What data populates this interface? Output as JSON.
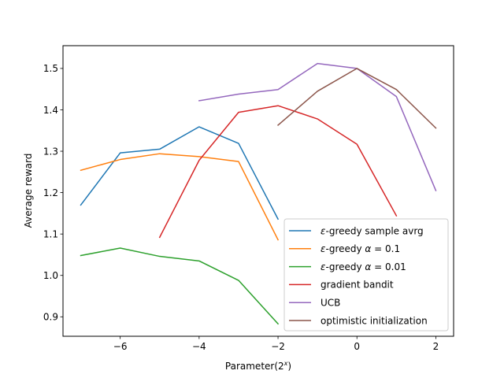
{
  "chart_data": {
    "type": "line",
    "xlabel": "Parameter(2",
    "xlabel_sup": "x",
    "xlabel_end": ")",
    "ylabel": "Average reward",
    "xlim": [
      -7.45,
      2.45
    ],
    "ylim": [
      0.853,
      1.555
    ],
    "xticks": [
      -6,
      -4,
      -2,
      0,
      2
    ],
    "xtick_labels": [
      "−6",
      "−4",
      "−2",
      "0",
      "2"
    ],
    "yticks": [
      0.9,
      1.0,
      1.1,
      1.2,
      1.3,
      1.4,
      1.5
    ],
    "ytick_labels": [
      "0.9",
      "1.0",
      "1.1",
      "1.2",
      "1.3",
      "1.4",
      "1.5"
    ],
    "grid": false,
    "legend_position": "lower-right",
    "series": [
      {
        "name": "ε-greedy sample avrg",
        "legend_main": "-greedy sample avrg",
        "legend_sub": "",
        "color": "#1f77b4",
        "x": [
          -7,
          -6,
          -5,
          -4,
          -3,
          -2
        ],
        "y": [
          1.17,
          1.296,
          1.305,
          1.359,
          1.319,
          1.136
        ]
      },
      {
        "name": "ε-greedy α = 0.1",
        "legend_main": "-greedy ",
        "legend_sub": "α = 0.1",
        "color": "#ff7f0e",
        "x": [
          -7,
          -6,
          -5,
          -4,
          -3,
          -2
        ],
        "y": [
          1.254,
          1.28,
          1.294,
          1.287,
          1.275,
          1.086
        ]
      },
      {
        "name": "ε-greedy α = 0.01",
        "legend_main": "-greedy ",
        "legend_sub": "α = 0.01",
        "color": "#2ca02c",
        "x": [
          -7,
          -6,
          -5,
          -4,
          -3,
          -2
        ],
        "y": [
          1.048,
          1.066,
          1.046,
          1.035,
          0.988,
          0.883
        ]
      },
      {
        "name": "gradient bandit",
        "legend_main": "gradient bandit",
        "legend_sub": "",
        "color": "#d62728",
        "x": [
          -5,
          -4,
          -3,
          -2,
          -1,
          0,
          1
        ],
        "y": [
          1.092,
          1.278,
          1.394,
          1.41,
          1.378,
          1.317,
          1.144
        ]
      },
      {
        "name": "UCB",
        "legend_main": "UCB",
        "legend_sub": "",
        "color": "#9467bd",
        "x": [
          -4,
          -3,
          -2,
          -1,
          0,
          1,
          2
        ],
        "y": [
          1.422,
          1.438,
          1.449,
          1.512,
          1.5,
          1.432,
          1.205
        ]
      },
      {
        "name": "optimistic initialization",
        "legend_main": "optimistic initialization",
        "legend_sub": "",
        "color": "#8c564b",
        "x": [
          -2,
          -1,
          0,
          1,
          2
        ],
        "y": [
          1.363,
          1.445,
          1.5,
          1.449,
          1.356
        ]
      }
    ]
  }
}
